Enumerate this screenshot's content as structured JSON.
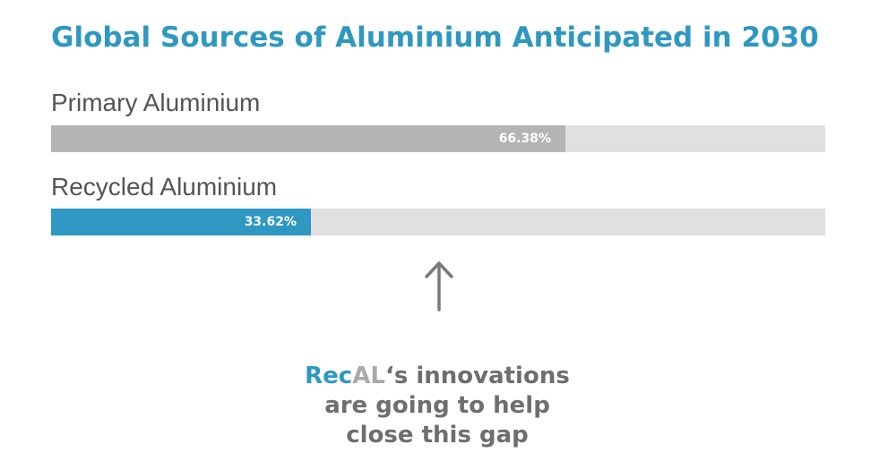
{
  "chart_data": {
    "type": "bar",
    "orientation": "horizontal",
    "title": "Global Sources of Aluminium Anticipated in 2030",
    "categories": [
      "Primary Aluminium",
      "Recycled Aluminium"
    ],
    "values": [
      66.38,
      33.62
    ],
    "value_labels": [
      "66.38%",
      "33.62%"
    ],
    "unit": "%",
    "xlim": [
      0,
      100
    ],
    "colors": [
      "#b4b4b4",
      "#2e98c3"
    ],
    "track_color": "#e0e0e0",
    "grid": false,
    "legend": "none"
  },
  "annotation": {
    "icon": "arrow-up-icon",
    "brand_part1": "Rec",
    "brand_part2": "AL",
    "line1_rest": "‘s innovations",
    "line2": "are going to help",
    "line3": "close this gap",
    "brand_colors": [
      "#2e98c3",
      "#a9a9a9"
    ],
    "text_color": "#6e6e6e"
  }
}
